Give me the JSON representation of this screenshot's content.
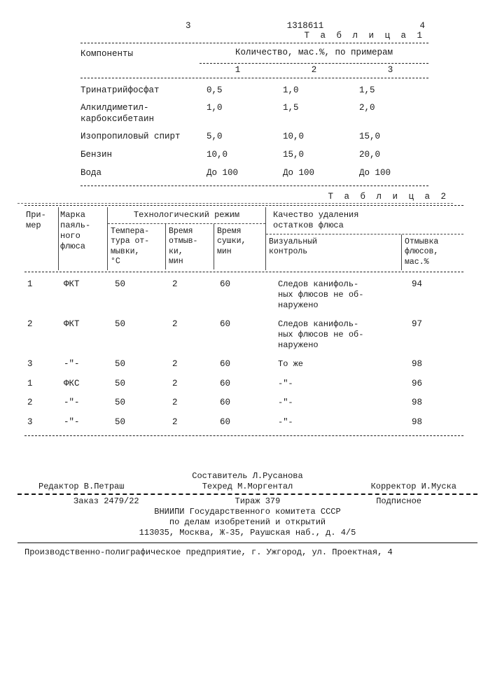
{
  "page_left_no": "3",
  "doc_no": "1318611",
  "page_right_no": "4",
  "table1": {
    "label": "Т а б л и ц а  1",
    "header": {
      "left": "Компоненты",
      "right": "Количество, мас.%, по примерам",
      "subs": [
        "1",
        "2",
        "3"
      ]
    },
    "rows": [
      {
        "label": "Тринатрийфосфат",
        "v": [
          "0,5",
          "1,0",
          "1,5"
        ]
      },
      {
        "label": "Алкилдиметил-\nкарбоксибетаин",
        "v": [
          "1,0",
          "1,5",
          "2,0"
        ]
      },
      {
        "label": "Изопропиловый спирт",
        "v": [
          "5,0",
          "10,0",
          "15,0"
        ]
      },
      {
        "label": "Бензин",
        "v": [
          "10,0",
          "15,0",
          "20,0"
        ]
      },
      {
        "label": "Вода",
        "v": [
          "До 100",
          "До 100",
          "До 100"
        ]
      }
    ]
  },
  "table2": {
    "label": "Т а б л и ц а  2",
    "header": {
      "c1": "При-\nмер",
      "c2": "Марка\nпаяль-\nного\nфлюса",
      "c3_top": "Технологический режим",
      "c3a": "Темпера-\nтура от-\nмывки,\n°С",
      "c3b": "Время\nотмыв-\nки,\nмин",
      "c3c": "Время\nсушки,\nмин",
      "c4_top": "Качество удаления\nостатков флюса",
      "c4a": "Визуальный\nконтроль",
      "c4b": "Отмывка\nфлюсов,\nмас.%"
    },
    "rows": [
      {
        "c1": "1",
        "c2": "ФКТ",
        "c3a": "50",
        "c3b": "2",
        "c3c": "60",
        "c4a": "Следов канифоль-\nных флюсов не об-\nнаружено",
        "c4b": "94"
      },
      {
        "c1": "2",
        "c2": "ФКТ",
        "c3a": "50",
        "c3b": "2",
        "c3c": "60",
        "c4a": "Следов канифоль-\nных флюсов не об-\nнаружено",
        "c4b": "97"
      },
      {
        "c1": "3",
        "c2": "-\"-",
        "c3a": "50",
        "c3b": "2",
        "c3c": "60",
        "c4a": "То же",
        "c4b": "98"
      },
      {
        "c1": "1",
        "c2": "ФКС",
        "c3a": "50",
        "c3b": "2",
        "c3c": "60",
        "c4a": "-\"-",
        "c4b": "96"
      },
      {
        "c1": "2",
        "c2": "-\"-",
        "c3a": "50",
        "c3b": "2",
        "c3c": "60",
        "c4a": "-\"-",
        "c4b": "98"
      },
      {
        "c1": "3",
        "c2": "-\"-",
        "c3a": "50",
        "c3b": "2",
        "c3c": "60",
        "c4a": "-\"-",
        "c4b": "98"
      }
    ]
  },
  "credits": {
    "compiler": "Составитель Л.Русанова",
    "editor": "Редактор В.Петраш",
    "tech": "Техред М.Моргентал",
    "corr": "Корректор И.Муска"
  },
  "pub": {
    "line1_left": "Заказ 2479/22",
    "line1_mid": "Тираж 379",
    "line1_right": "Подписное",
    "line2": "ВНИИПИ Государственного комитета СССР",
    "line3": "по делам изобретений и открытий",
    "line4": "113035, Москва, Ж-35, Раушская наб., д. 4/5"
  },
  "footer": "Производственно-полиграфическое предприятие, г. Ужгород, ул. Проектная, 4"
}
